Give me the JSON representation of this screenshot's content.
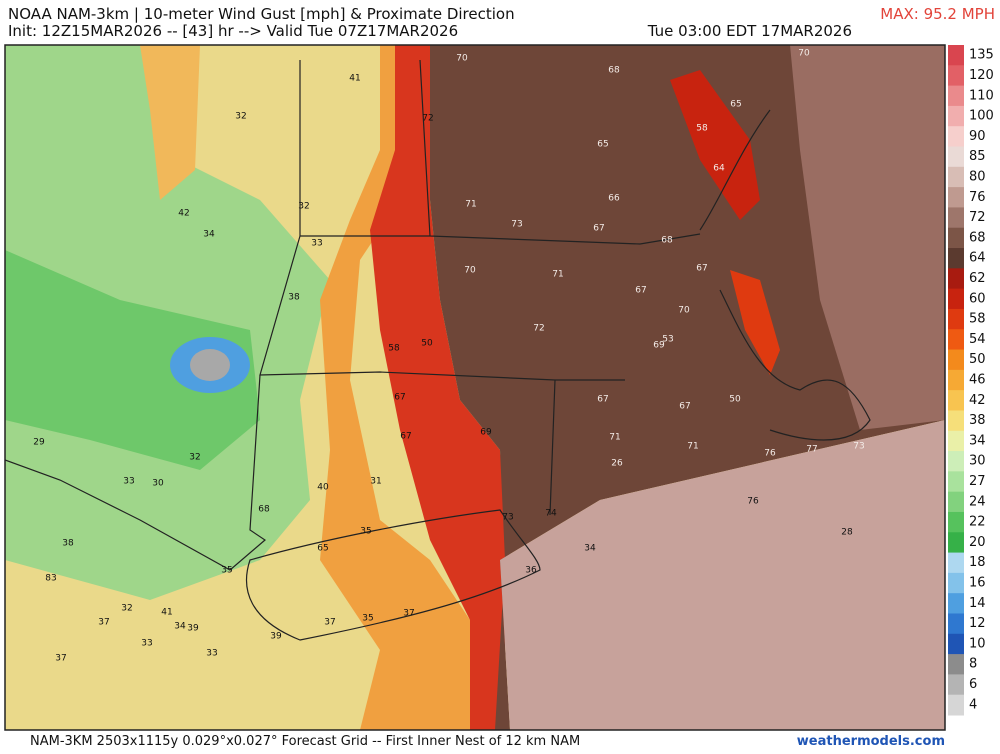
{
  "header": {
    "title": "NOAA NAM-3km | 10-meter Wind Gust [mph] & Proximate Direction",
    "init": "Init: 12Z15MAR2026 -- [43] hr --> Valid Tue 07Z17MAR2026",
    "valid_local": "Tue 03:00 EDT 17MAR2026",
    "max": "MAX: 95.2 MPH"
  },
  "colorbar": {
    "labels": [
      135,
      120,
      110,
      100,
      90,
      85,
      80,
      76,
      72,
      68,
      64,
      62,
      60,
      58,
      54,
      50,
      46,
      42,
      38,
      34,
      30,
      27,
      24,
      22,
      20,
      18,
      16,
      14,
      12,
      10,
      8,
      6,
      4
    ],
    "colors": [
      "#d9454f",
      "#e26066",
      "#ea8a8c",
      "#f1aeae",
      "#f6cfcc",
      "#eadad6",
      "#d8bdb5",
      "#bf9a90",
      "#9e766b",
      "#7c5547",
      "#5b3a2f",
      "#a81b10",
      "#c8230f",
      "#df3a10",
      "#ef5a12",
      "#f38a1c",
      "#f6a934",
      "#f8c450",
      "#f6df7a",
      "#eaf0a8",
      "#cdeeb8",
      "#a9e29d",
      "#82d27e",
      "#56c25d",
      "#36b148",
      "#aed8f0",
      "#83c2ea",
      "#4f9fe0",
      "#2f78d0",
      "#1f55b5",
      "#8c8c8c",
      "#b4b4b4",
      "#d6d6d6"
    ]
  },
  "map_labels": [
    41,
    32,
    32,
    42,
    34,
    33,
    38,
    70,
    72,
    68,
    70,
    65,
    58,
    65,
    64,
    71,
    73,
    66,
    67,
    68,
    70,
    71,
    67,
    67,
    70,
    72,
    69,
    53,
    58,
    50,
    67,
    67,
    67,
    50,
    67,
    69,
    71,
    71,
    76,
    77,
    73,
    26,
    29,
    32,
    33,
    30,
    40,
    31,
    68,
    73,
    74,
    76,
    28,
    38,
    35,
    65,
    34,
    35,
    83,
    36,
    32,
    41,
    37,
    37,
    37,
    35,
    34,
    39,
    33,
    39,
    33,
    37
  ],
  "footer": {
    "grid": "NAM-3KM 2503x1115y 0.029°x0.027° Forecast Grid -- First Inner Nest of 12 km NAM",
    "site": "weathermodels.com"
  }
}
